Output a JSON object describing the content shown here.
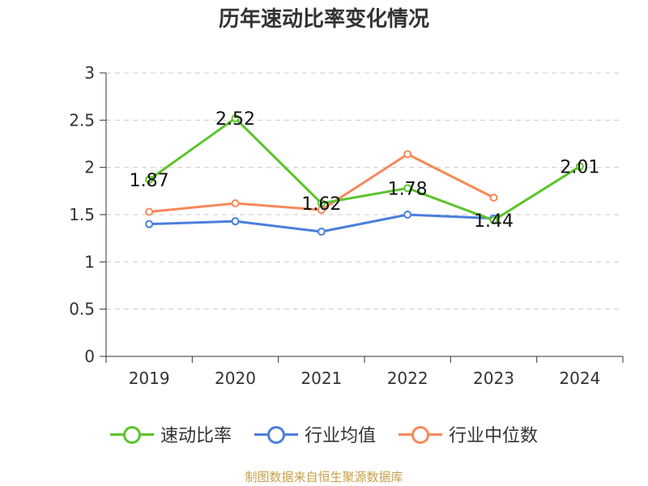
{
  "title": "历年速动比率变化情况",
  "source": "制图数据来自恒生聚源数据库",
  "chart_data": {
    "type": "line",
    "categories": [
      "2019",
      "2020",
      "2021",
      "2022",
      "2023",
      "2024"
    ],
    "ylim": [
      0,
      3
    ],
    "yticks": [
      "0",
      "0.5",
      "1",
      "1.5",
      "2",
      "2.5",
      "3"
    ],
    "grid": true,
    "legend_position": "bottom",
    "series": [
      {
        "name": "速动比率",
        "color": "#5cc42b",
        "values": [
          1.87,
          2.52,
          1.62,
          1.78,
          1.44,
          2.01
        ],
        "labels": [
          "1.87",
          "2.52",
          "1.62",
          "1.78",
          "1.44",
          "2.01"
        ]
      },
      {
        "name": "行业均值",
        "color": "#4a7fdc",
        "values": [
          1.4,
          1.43,
          1.32,
          1.5,
          1.46,
          null
        ]
      },
      {
        "name": "行业中位数",
        "color": "#f5895a",
        "values": [
          1.53,
          1.62,
          1.55,
          2.14,
          1.68,
          null
        ]
      }
    ]
  }
}
